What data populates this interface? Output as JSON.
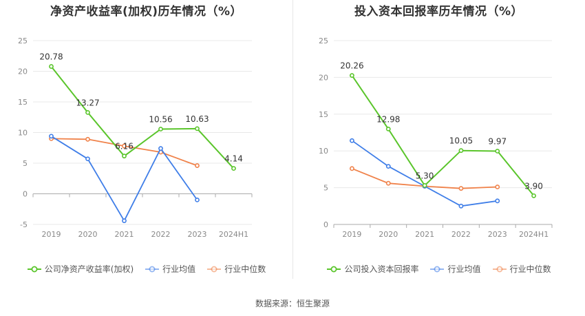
{
  "source_text": "数据来源：恒生聚源",
  "chart_data": [
    {
      "type": "line",
      "title": "净资产收益率(加权)历年情况（%）",
      "xlabel": "",
      "ylabel": "",
      "categories": [
        "2019",
        "2020",
        "2021",
        "2022",
        "2023",
        "2024H1"
      ],
      "ylim": [
        -5,
        25
      ],
      "yticks": [
        -5,
        0,
        5,
        10,
        15,
        20,
        25
      ],
      "grid": true,
      "legend_position": "bottom",
      "series": [
        {
          "name": "公司净资产收益率(加权)",
          "color": "#5ac52b",
          "values": [
            20.78,
            13.27,
            6.16,
            10.56,
            10.63,
            4.14
          ],
          "labels": [
            "20.78",
            "13.27",
            "6.16",
            "10.56",
            "10.63",
            "4.14"
          ],
          "width": 2
        },
        {
          "name": "行业均值",
          "color": "#3f7ee8",
          "values": [
            9.4,
            5.7,
            -4.4,
            7.4,
            -1.0,
            null
          ],
          "width": 1.8
        },
        {
          "name": "行业中位数",
          "color": "#f0824a",
          "values": [
            9.0,
            8.9,
            7.8,
            6.8,
            4.6,
            null
          ],
          "width": 1.8
        }
      ]
    },
    {
      "type": "line",
      "title": "投入资本回报率历年情况（%）",
      "xlabel": "",
      "ylabel": "",
      "categories": [
        "2019",
        "2020",
        "2021",
        "2022",
        "2023",
        "2024H1"
      ],
      "ylim": [
        0,
        25
      ],
      "yticks": [
        0,
        5,
        10,
        15,
        20,
        25
      ],
      "grid": true,
      "legend_position": "bottom",
      "series": [
        {
          "name": "公司投入资本回报率",
          "color": "#5ac52b",
          "values": [
            20.26,
            12.98,
            5.3,
            10.05,
            9.97,
            3.9
          ],
          "labels": [
            "20.26",
            "12.98",
            "5.30",
            "10.05",
            "9.97",
            "3.90"
          ],
          "width": 2
        },
        {
          "name": "行业均值",
          "color": "#3f7ee8",
          "values": [
            11.4,
            7.9,
            5.2,
            2.5,
            3.2,
            null
          ],
          "width": 1.8
        },
        {
          "name": "行业中位数",
          "color": "#f0824a",
          "values": [
            7.6,
            5.6,
            5.2,
            4.9,
            5.1,
            null
          ],
          "width": 1.8
        }
      ]
    }
  ]
}
